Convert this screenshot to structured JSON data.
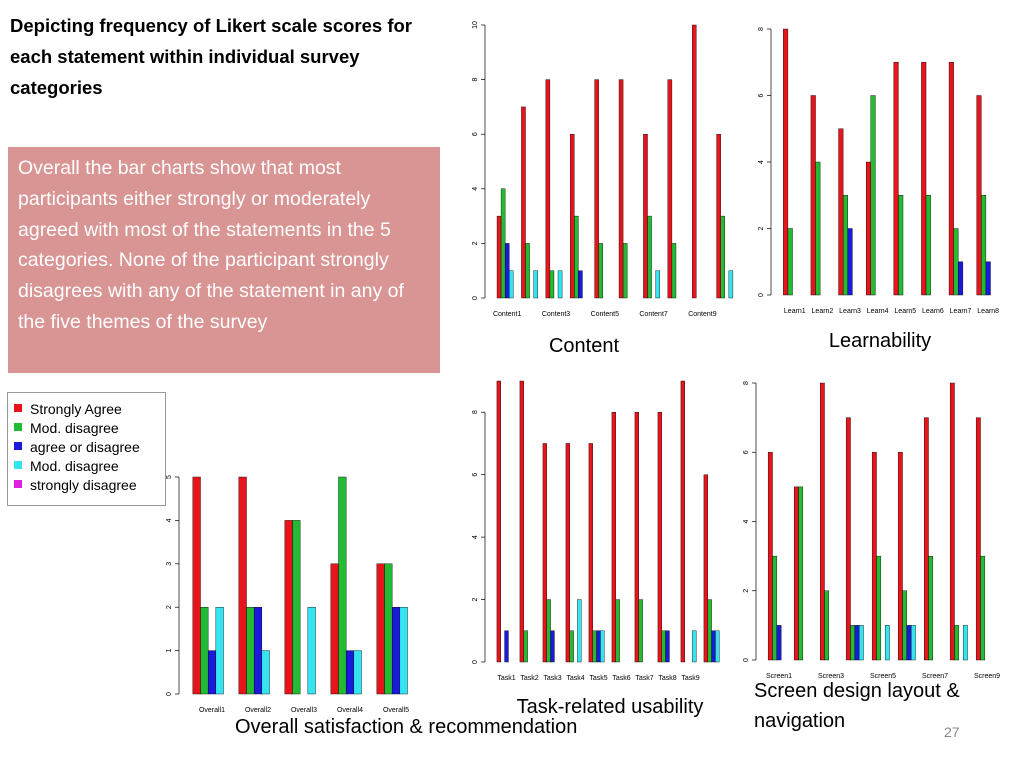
{
  "header": {
    "title": "Depicting frequency of Likert scale scores for each statement within individual survey categories"
  },
  "body": {
    "text": "Overall the bar charts show that most participants either strongly or moderately agreed with most of the statements in the 5 categories. None of the participant strongly disagrees with any of the statement in any of the five themes of the survey"
  },
  "legend": {
    "items": [
      {
        "name": "Strongly Agree",
        "color": "#e8141c"
      },
      {
        "name": "Mod. disagree",
        "color": "#22bb33"
      },
      {
        "name": "agree or disagree",
        "color": "#1a1adc"
      },
      {
        "name": "Mod. disagree",
        "color": "#33e5f0"
      },
      {
        "name": "strongly disagree",
        "color": "#e020e0"
      }
    ]
  },
  "page_number": 27,
  "chart_data": [
    {
      "type": "bar",
      "title": "Content",
      "categories": [
        "Content1",
        null,
        "Content3",
        null,
        "Content5",
        null,
        "Content7",
        null,
        "Content9",
        null
      ],
      "series": [
        {
          "color": "#e8141c",
          "values": [
            3,
            7,
            8,
            6,
            8,
            8,
            6,
            8,
            10,
            6
          ]
        },
        {
          "color": "#22bb33",
          "values": [
            4,
            2,
            1,
            3,
            2,
            2,
            3,
            2,
            0,
            3
          ]
        },
        {
          "color": "#1a1adc",
          "values": [
            2,
            0,
            0,
            1,
            0,
            0,
            0,
            0,
            0,
            0
          ]
        },
        {
          "color": "#33e5f0",
          "values": [
            1,
            1,
            1,
            0,
            0,
            0,
            1,
            0,
            0,
            1
          ]
        },
        {
          "color": "#e020e0",
          "values": [
            0,
            0,
            0,
            0,
            0,
            0,
            0,
            0,
            0,
            0
          ]
        }
      ],
      "ylim": [
        0,
        10
      ],
      "yticks": [
        0,
        2,
        4,
        6,
        8,
        10
      ]
    },
    {
      "type": "bar",
      "title": "Learnability",
      "categories": [
        "Learn1",
        "Learn2",
        "Learn3",
        "Learn4",
        "Learn5",
        "Learn6",
        "Learn7",
        "Learn8"
      ],
      "series": [
        {
          "color": "#e8141c",
          "values": [
            8,
            6,
            5,
            4,
            7,
            7,
            7,
            6
          ]
        },
        {
          "color": "#22bb33",
          "values": [
            2,
            4,
            3,
            6,
            3,
            3,
            2,
            3
          ]
        },
        {
          "color": "#1a1adc",
          "values": [
            0,
            0,
            2,
            0,
            0,
            0,
            1,
            1
          ]
        },
        {
          "color": "#33e5f0",
          "values": [
            0,
            0,
            0,
            0,
            0,
            0,
            0,
            0
          ]
        },
        {
          "color": "#e020e0",
          "values": [
            0,
            0,
            0,
            0,
            0,
            0,
            0,
            0
          ]
        }
      ],
      "ylim": [
        0,
        8
      ],
      "yticks": [
        0,
        2,
        4,
        6,
        8
      ]
    },
    {
      "type": "bar",
      "title": "Task-related usability",
      "categories": [
        "Task1",
        "Task2",
        "Task3",
        "Task4",
        "Task5",
        "Task6",
        "Task7",
        "Task8",
        "Task9",
        null
      ],
      "series": [
        {
          "color": "#e8141c",
          "values": [
            9,
            9,
            7,
            7,
            7,
            8,
            8,
            8,
            9,
            6
          ]
        },
        {
          "color": "#22bb33",
          "values": [
            0,
            1,
            2,
            1,
            1,
            2,
            2,
            1,
            0,
            2
          ]
        },
        {
          "color": "#1a1adc",
          "values": [
            1,
            0,
            1,
            0,
            1,
            0,
            0,
            1,
            0,
            1
          ]
        },
        {
          "color": "#33e5f0",
          "values": [
            0,
            0,
            0,
            2,
            1,
            0,
            0,
            0,
            1,
            1
          ]
        },
        {
          "color": "#e020e0",
          "values": [
            0,
            0,
            0,
            0,
            0,
            0,
            0,
            0,
            0,
            0
          ]
        }
      ],
      "ylim": [
        0,
        9
      ],
      "yticks": [
        0,
        2,
        4,
        6,
        8
      ]
    },
    {
      "type": "bar",
      "title": "Screen design layout & navigation",
      "categories": [
        "Screen1",
        null,
        "Screen3",
        null,
        "Screen5",
        null,
        "Screen7",
        null,
        "Screen9"
      ],
      "series": [
        {
          "color": "#e8141c",
          "values": [
            6,
            5,
            8,
            7,
            6,
            6,
            7,
            8,
            7
          ]
        },
        {
          "color": "#22bb33",
          "values": [
            3,
            5,
            2,
            1,
            3,
            2,
            3,
            1,
            3
          ]
        },
        {
          "color": "#1a1adc",
          "values": [
            1,
            0,
            0,
            1,
            0,
            1,
            0,
            0,
            0
          ]
        },
        {
          "color": "#33e5f0",
          "values": [
            0,
            0,
            0,
            1,
            1,
            1,
            0,
            1,
            0
          ]
        },
        {
          "color": "#e020e0",
          "values": [
            0,
            0,
            0,
            0,
            0,
            0,
            0,
            0,
            0
          ]
        }
      ],
      "ylim": [
        0,
        8
      ],
      "yticks": [
        0,
        2,
        4,
        6,
        8
      ]
    },
    {
      "type": "bar",
      "title": "Overall satisfaction & recommendation",
      "categories": [
        "Overall1",
        "Overall2",
        "Overall3",
        "Overall4",
        "Overall5"
      ],
      "series": [
        {
          "color": "#e8141c",
          "values": [
            5,
            5,
            4,
            3,
            3
          ]
        },
        {
          "color": "#22bb33",
          "values": [
            2,
            2,
            4,
            5,
            3
          ]
        },
        {
          "color": "#1a1adc",
          "values": [
            1,
            2,
            0,
            1,
            2
          ]
        },
        {
          "color": "#33e5f0",
          "values": [
            2,
            1,
            2,
            1,
            2
          ]
        },
        {
          "color": "#e020e0",
          "values": [
            0,
            0,
            0,
            0,
            0
          ]
        }
      ],
      "ylim": [
        0,
        5
      ],
      "yticks": [
        0,
        1,
        2,
        3,
        4,
        5
      ]
    }
  ]
}
